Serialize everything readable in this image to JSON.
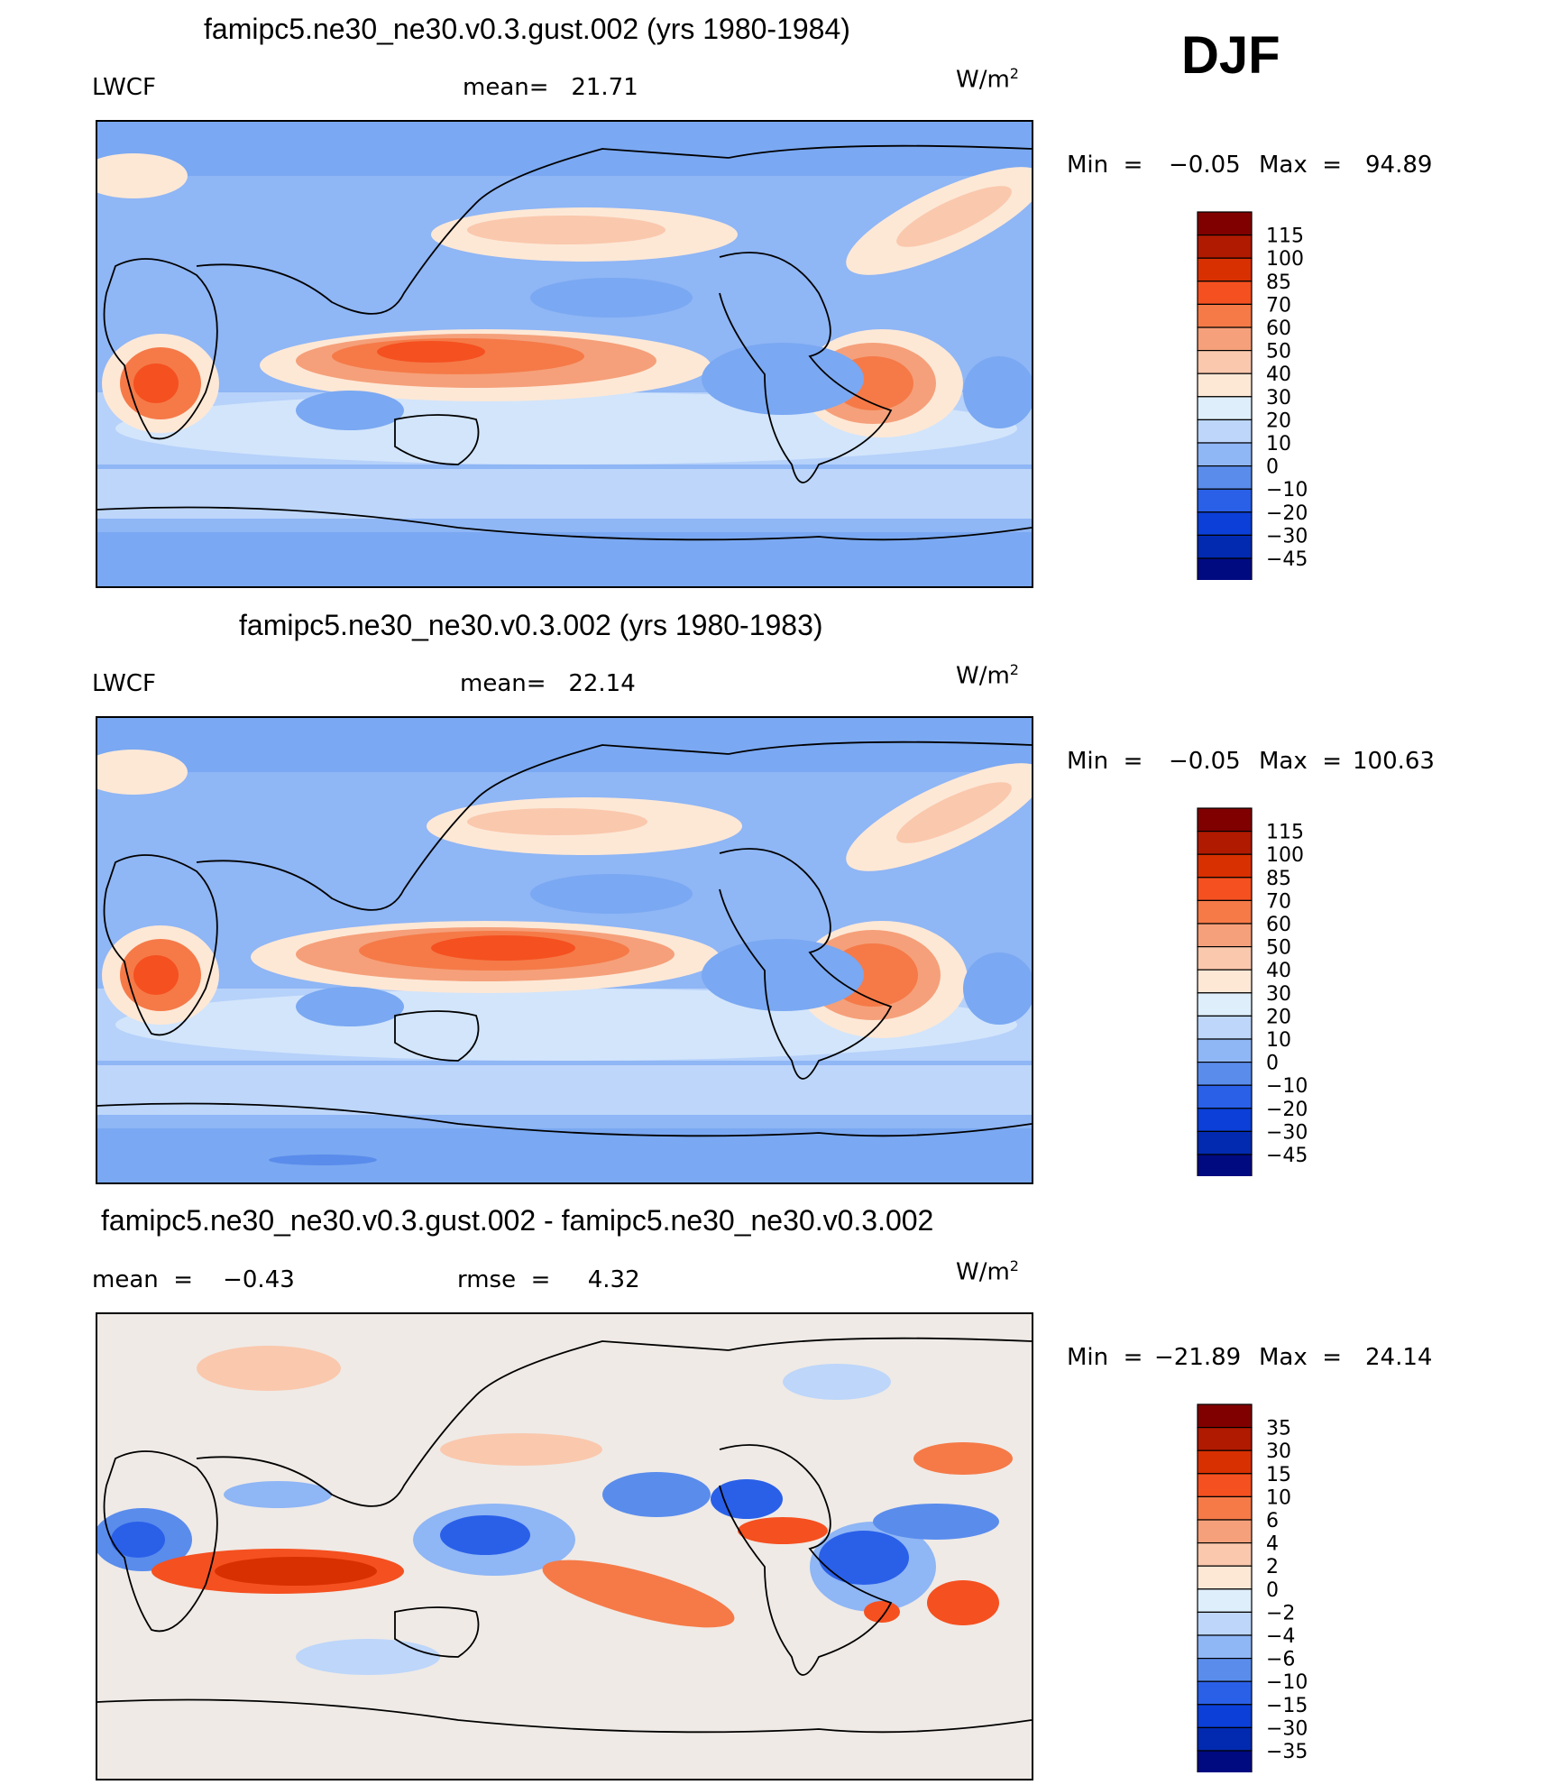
{
  "season": "DJF",
  "units": "W/m",
  "units_sup": "2",
  "panels": [
    {
      "title": "famipc5.ne30_ne30.v0.3.gust.002 (yrs 1980-1984)",
      "left_label": "LWCF",
      "center_label": "mean=   21.71",
      "min_label": "Min  =",
      "min_value": "−0.05",
      "max_label": "Max  =",
      "max_value": "94.89"
    },
    {
      "title": "famipc5.ne30_ne30.v0.3.002 (yrs 1980-1983)",
      "left_label": "LWCF",
      "center_label": "mean=   22.14",
      "min_label": "Min  =",
      "min_value": "−0.05",
      "max_label": "Max  =",
      "max_value": "100.63"
    },
    {
      "title": "famipc5.ne30_ne30.v0.3.gust.002 - famipc5.ne30_ne30.v0.3.002",
      "left_label": "mean  =    −0.43",
      "center_label": "rmse  =     4.32",
      "min_label": "Min  =",
      "min_value": "−21.89",
      "max_label": "Max  =",
      "max_value": "24.14"
    }
  ],
  "chart_data": [
    {
      "type": "heatmap",
      "title": "famipc5.ne30_ne30.v0.3.gust.002 (yrs 1980-1984)",
      "variable": "LWCF",
      "mean": 21.71,
      "min": -0.05,
      "max": 94.89,
      "colorbar_levels": [
        "115",
        "100",
        "85",
        "70",
        "60",
        "50",
        "40",
        "30",
        "20",
        "10",
        "0",
        "−10",
        "−20",
        "−30",
        "−45"
      ],
      "colorbar_colors": [
        "#800000",
        "#b01a00",
        "#d83000",
        "#f55020",
        "#f57a48",
        "#f5a07a",
        "#fac8ad",
        "#fde8d6",
        "#deeefb",
        "#bdd6fa",
        "#8fb6f5",
        "#5a8cec",
        "#2a60e8",
        "#0b3fd8",
        "#022ab0",
        "#000a80"
      ]
    },
    {
      "type": "heatmap",
      "title": "famipc5.ne30_ne30.v0.3.002 (yrs 1980-1983)",
      "variable": "LWCF",
      "mean": 22.14,
      "min": -0.05,
      "max": 100.63,
      "colorbar_levels": [
        "115",
        "100",
        "85",
        "70",
        "60",
        "50",
        "40",
        "30",
        "20",
        "10",
        "0",
        "−10",
        "−20",
        "−30",
        "−45"
      ],
      "colorbar_colors": [
        "#800000",
        "#b01a00",
        "#d83000",
        "#f55020",
        "#f57a48",
        "#f5a07a",
        "#fac8ad",
        "#fde8d6",
        "#deeefb",
        "#bdd6fa",
        "#8fb6f5",
        "#5a8cec",
        "#2a60e8",
        "#0b3fd8",
        "#022ab0",
        "#000a80"
      ]
    },
    {
      "type": "heatmap",
      "title": "famipc5.ne30_ne30.v0.3.gust.002 - famipc5.ne30_ne30.v0.3.002",
      "mean": -0.43,
      "rmse": 4.32,
      "min": -21.89,
      "max": 24.14,
      "colorbar_levels": [
        "35",
        "30",
        "15",
        "10",
        "6",
        "4",
        "2",
        "0",
        "−2",
        "−4",
        "−6",
        "−10",
        "−15",
        "−30",
        "−35"
      ],
      "colorbar_colors": [
        "#800000",
        "#b01a00",
        "#d83000",
        "#f55020",
        "#f57a48",
        "#f5a07a",
        "#fac8ad",
        "#fde8d6",
        "#deeefb",
        "#bdd6fa",
        "#8fb6f5",
        "#5a8cec",
        "#2a60e8",
        "#0b3fd8",
        "#022ab0",
        "#000a80"
      ]
    }
  ]
}
